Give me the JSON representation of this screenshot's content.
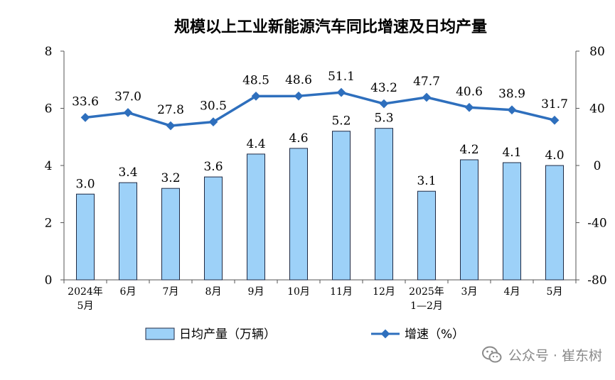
{
  "chart_data": {
    "type": "bar",
    "title": "规模以上工业新能源汽车同比增速及日均产量",
    "categories": [
      [
        "2024年",
        "5月"
      ],
      [
        "6月"
      ],
      [
        "7月"
      ],
      [
        "8月"
      ],
      [
        "9月"
      ],
      [
        "10月"
      ],
      [
        "11月"
      ],
      [
        "12月"
      ],
      [
        "2025年",
        "1—2月"
      ],
      [
        "3月"
      ],
      [
        "4月"
      ],
      [
        "5月"
      ]
    ],
    "series": [
      {
        "name": "日均产量（万辆）",
        "type": "bar",
        "axis": "left",
        "color": "#9dd1f8",
        "edge_color": "#1f2a44",
        "values": [
          3.0,
          3.4,
          3.2,
          3.6,
          4.4,
          4.6,
          5.2,
          5.3,
          3.1,
          4.2,
          4.1,
          4.0
        ],
        "labels": [
          "3.0",
          "3.4",
          "3.2",
          "3.6",
          "4.4",
          "4.6",
          "5.2",
          "5.3",
          "3.1",
          "4.2",
          "4.1",
          "4.0"
        ]
      },
      {
        "name": "增速（%）",
        "type": "line",
        "axis": "right",
        "color": "#2e6fbd",
        "values": [
          33.6,
          37.0,
          27.8,
          30.5,
          48.5,
          48.6,
          51.1,
          43.2,
          47.7,
          40.6,
          38.9,
          31.7
        ],
        "labels": [
          "33.6",
          "37.0",
          "27.8",
          "30.5",
          "48.5",
          "48.6",
          "51.1",
          "43.2",
          "47.7",
          "40.6",
          "38.9",
          "31.7"
        ]
      }
    ],
    "y_left": {
      "ylim": [
        0,
        8
      ],
      "ticks": [
        "0",
        "2",
        "4",
        "6",
        "8"
      ]
    },
    "y_right": {
      "ylim": [
        -80,
        80
      ],
      "ticks": [
        "-80",
        "-40",
        "0",
        "40",
        "80"
      ]
    },
    "grid": false,
    "legend_position": "bottom"
  },
  "watermark": {
    "text": "公众号 · 崔东树",
    "icon": "wechat-icon"
  }
}
